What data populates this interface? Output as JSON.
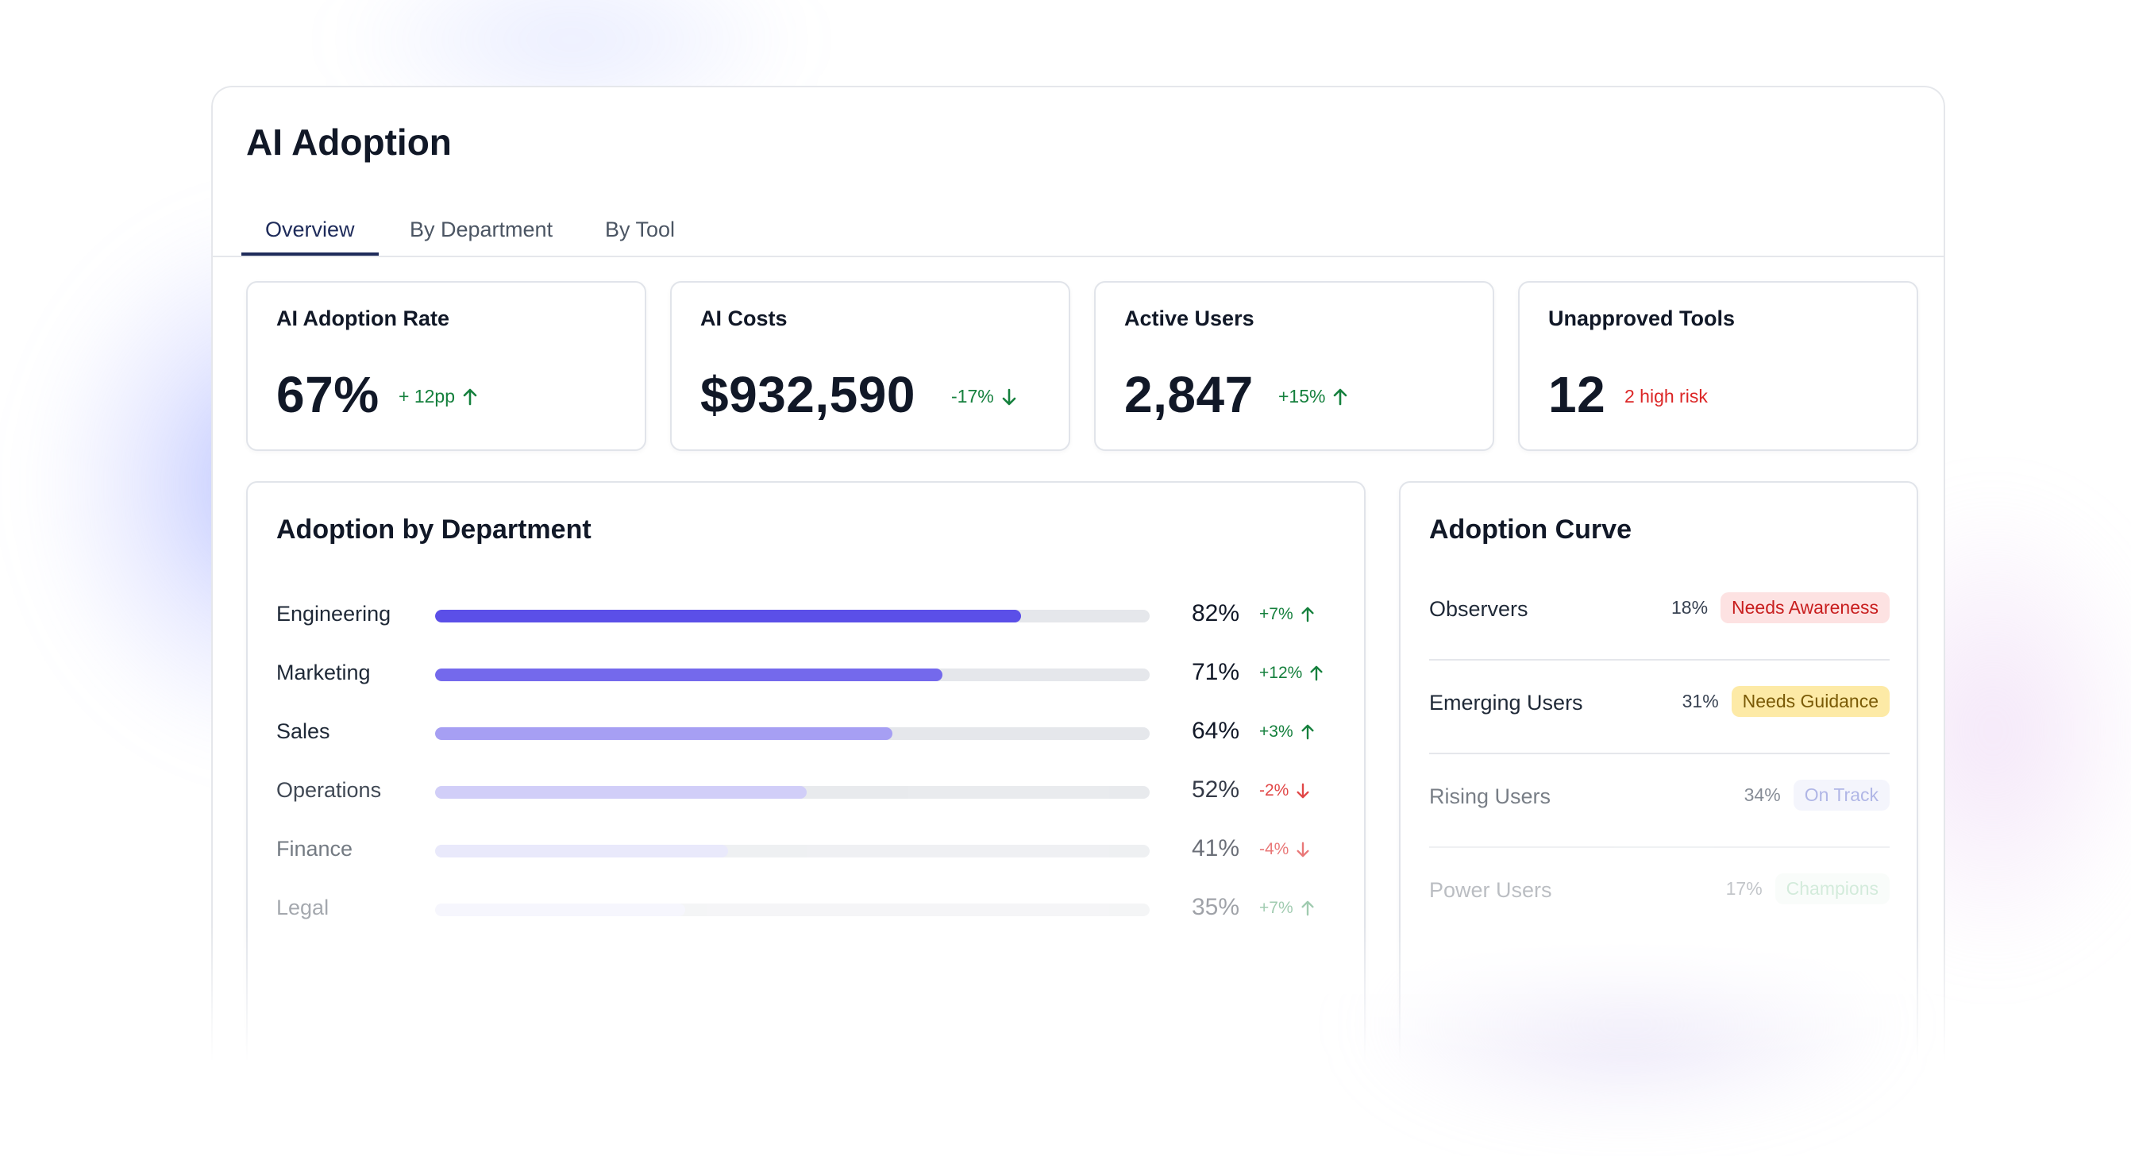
{
  "page": {
    "title": "AI Adoption"
  },
  "tabs": [
    {
      "label": "Overview",
      "active": true
    },
    {
      "label": "By Department",
      "active": false
    },
    {
      "label": "By Tool",
      "active": false
    }
  ],
  "kpis": {
    "adoption_rate": {
      "title": "AI Adoption Rate",
      "value": "67%",
      "delta": "+ 12pp",
      "trend": "up"
    },
    "costs": {
      "title": "AI Costs",
      "value": "$932,590",
      "delta": "-17%",
      "trend": "down"
    },
    "active_users": {
      "title": "Active Users",
      "value": "2,847",
      "delta": "+15%",
      "trend": "up"
    },
    "unapproved_tools": {
      "title": "Unapproved Tools",
      "value": "12",
      "note": "2 high risk"
    }
  },
  "department": {
    "title": "Adoption by Department",
    "rows": [
      {
        "name": "Engineering",
        "value": 82,
        "pct": "82%",
        "delta": "+7%",
        "trend": "up"
      },
      {
        "name": "Marketing",
        "value": 71,
        "pct": "71%",
        "delta": "+12%",
        "trend": "up"
      },
      {
        "name": "Sales",
        "value": 64,
        "pct": "64%",
        "delta": "+3%",
        "trend": "up"
      },
      {
        "name": "Operations",
        "value": 52,
        "pct": "52%",
        "delta": "-2%",
        "trend": "down"
      },
      {
        "name": "Finance",
        "value": 41,
        "pct": "41%",
        "delta": "-4%",
        "trend": "down"
      },
      {
        "name": "Legal",
        "value": 35,
        "pct": "35%",
        "delta": "+7%",
        "trend": "up"
      }
    ]
  },
  "curve": {
    "title": "Adoption Curve",
    "rows": [
      {
        "name": "Observers",
        "pct": "18%",
        "badge": "Needs Awareness"
      },
      {
        "name": "Emerging Users",
        "pct": "31%",
        "badge": "Needs Guidance"
      },
      {
        "name": "Rising Users",
        "pct": "34%",
        "badge": "On Track"
      },
      {
        "name": "Power Users",
        "pct": "17%",
        "badge": "Champions"
      }
    ]
  },
  "colors": {
    "accent": "#1e2b5a",
    "positive": "#15803d",
    "negative": "#dc2626",
    "bar_fills": [
      "#5b4fe8",
      "#7469ec",
      "#a69ff3",
      "#c9c6f7",
      "#dddcf9",
      "#ebebfb"
    ],
    "badge_awareness_bg": "#fde2e2",
    "badge_awareness_fg": "#c81e1e",
    "badge_guidance_bg": "#fdeaa6",
    "badge_guidance_fg": "#7a5a06",
    "badge_ontrack_bg": "#eef0fb",
    "badge_ontrack_fg": "#7c86d6",
    "badge_champions_bg": "#eef8f1",
    "badge_champions_fg": "#6fbf8b"
  }
}
